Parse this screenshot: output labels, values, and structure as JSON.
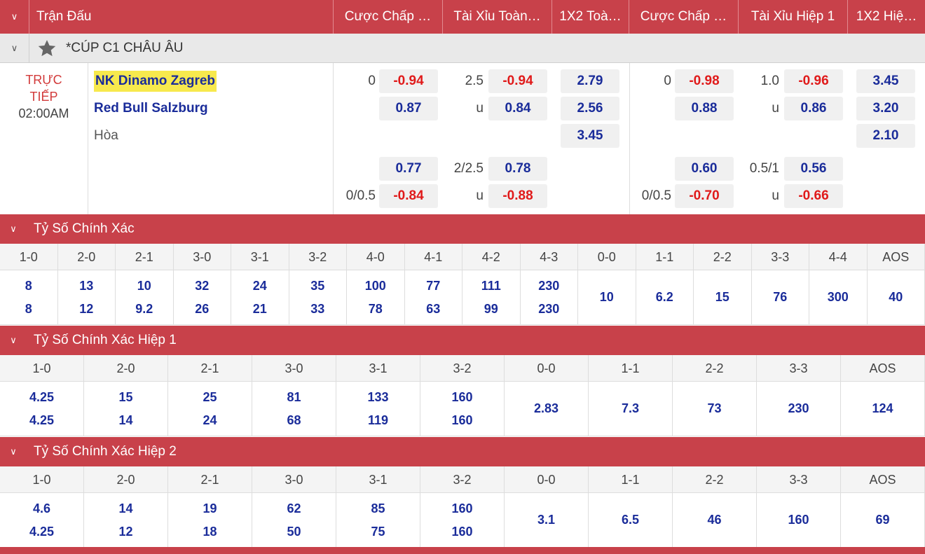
{
  "header": {
    "title": "Trận Đấu",
    "cols": [
      "Cược Chấp …",
      "Tài Xỉu Toàn…",
      "1X2 Toà…",
      "Cược Chấp …",
      "Tài Xỉu Hiệp 1",
      "1X2 Hiệ…"
    ]
  },
  "league": {
    "name": "*CÚP C1 CHÂU ÂU"
  },
  "match": {
    "status1": "TRỰC",
    "status2": "TIẾP",
    "time": "02:00AM",
    "home": "NK Dinamo Zagreb",
    "away": "Red Bull Salzburg",
    "draw": "Hòa",
    "ft": {
      "hdp1": "0",
      "hdp1_home": "-0.94",
      "hdp1_away": "0.87",
      "ou1": "2.5",
      "ou1_over": "-0.94",
      "ou1_u": "u",
      "ou1_under": "0.84",
      "x12_home": "2.79",
      "x12_away": "2.56",
      "x12_draw": "3.45",
      "hdp2_home": "0.77",
      "hdp2": "0/0.5",
      "hdp2_away": "-0.84",
      "ou2": "2/2.5",
      "ou2_over": "0.78",
      "ou2_u": "u",
      "ou2_under": "-0.88"
    },
    "h1": {
      "hdp1": "0",
      "hdp1_home": "-0.98",
      "hdp1_away": "0.88",
      "ou1": "1.0",
      "ou1_over": "-0.96",
      "ou1_u": "u",
      "ou1_under": "0.86",
      "x12_home": "3.45",
      "x12_away": "3.20",
      "x12_draw": "2.10",
      "hdp2_home": "0.60",
      "hdp2": "0/0.5",
      "hdp2_away": "-0.70",
      "ou2": "0.5/1",
      "ou2_over": "0.56",
      "ou2_u": "u",
      "ou2_under": "-0.66"
    }
  },
  "sections": [
    {
      "title": "Tỷ Số Chính Xác",
      "headers": [
        "1-0",
        "2-0",
        "2-1",
        "3-0",
        "3-1",
        "3-2",
        "4-0",
        "4-1",
        "4-2",
        "4-3",
        "0-0",
        "1-1",
        "2-2",
        "3-3",
        "4-4",
        "AOS"
      ],
      "cells": [
        [
          "8",
          "8"
        ],
        [
          "13",
          "12"
        ],
        [
          "10",
          "9.2"
        ],
        [
          "32",
          "26"
        ],
        [
          "24",
          "21"
        ],
        [
          "35",
          "33"
        ],
        [
          "100",
          "78"
        ],
        [
          "77",
          "63"
        ],
        [
          "111",
          "99"
        ],
        [
          "230",
          "230"
        ],
        [
          "10"
        ],
        [
          "6.2"
        ],
        [
          "15"
        ],
        [
          "76"
        ],
        [
          "300"
        ],
        [
          "40"
        ]
      ]
    },
    {
      "title": "Tỷ Số Chính Xác Hiệp 1",
      "headers": [
        "1-0",
        "2-0",
        "2-1",
        "3-0",
        "3-1",
        "3-2",
        "0-0",
        "1-1",
        "2-2",
        "3-3",
        "AOS"
      ],
      "cells": [
        [
          "4.25",
          "4.25"
        ],
        [
          "15",
          "14"
        ],
        [
          "25",
          "24"
        ],
        [
          "81",
          "68"
        ],
        [
          "133",
          "119"
        ],
        [
          "160",
          "160"
        ],
        [
          "2.83"
        ],
        [
          "7.3"
        ],
        [
          "73"
        ],
        [
          "230"
        ],
        [
          "124"
        ]
      ]
    },
    {
      "title": "Tỷ Số Chính Xác Hiệp 2",
      "headers": [
        "1-0",
        "2-0",
        "2-1",
        "3-0",
        "3-1",
        "3-2",
        "0-0",
        "1-1",
        "2-2",
        "3-3",
        "AOS"
      ],
      "cells": [
        [
          "4.6",
          "4.25"
        ],
        [
          "14",
          "12"
        ],
        [
          "19",
          "18"
        ],
        [
          "62",
          "50"
        ],
        [
          "85",
          "75"
        ],
        [
          "160",
          "160"
        ],
        [
          "3.1"
        ],
        [
          "6.5"
        ],
        [
          "46"
        ],
        [
          "160"
        ],
        [
          "69"
        ]
      ]
    }
  ]
}
